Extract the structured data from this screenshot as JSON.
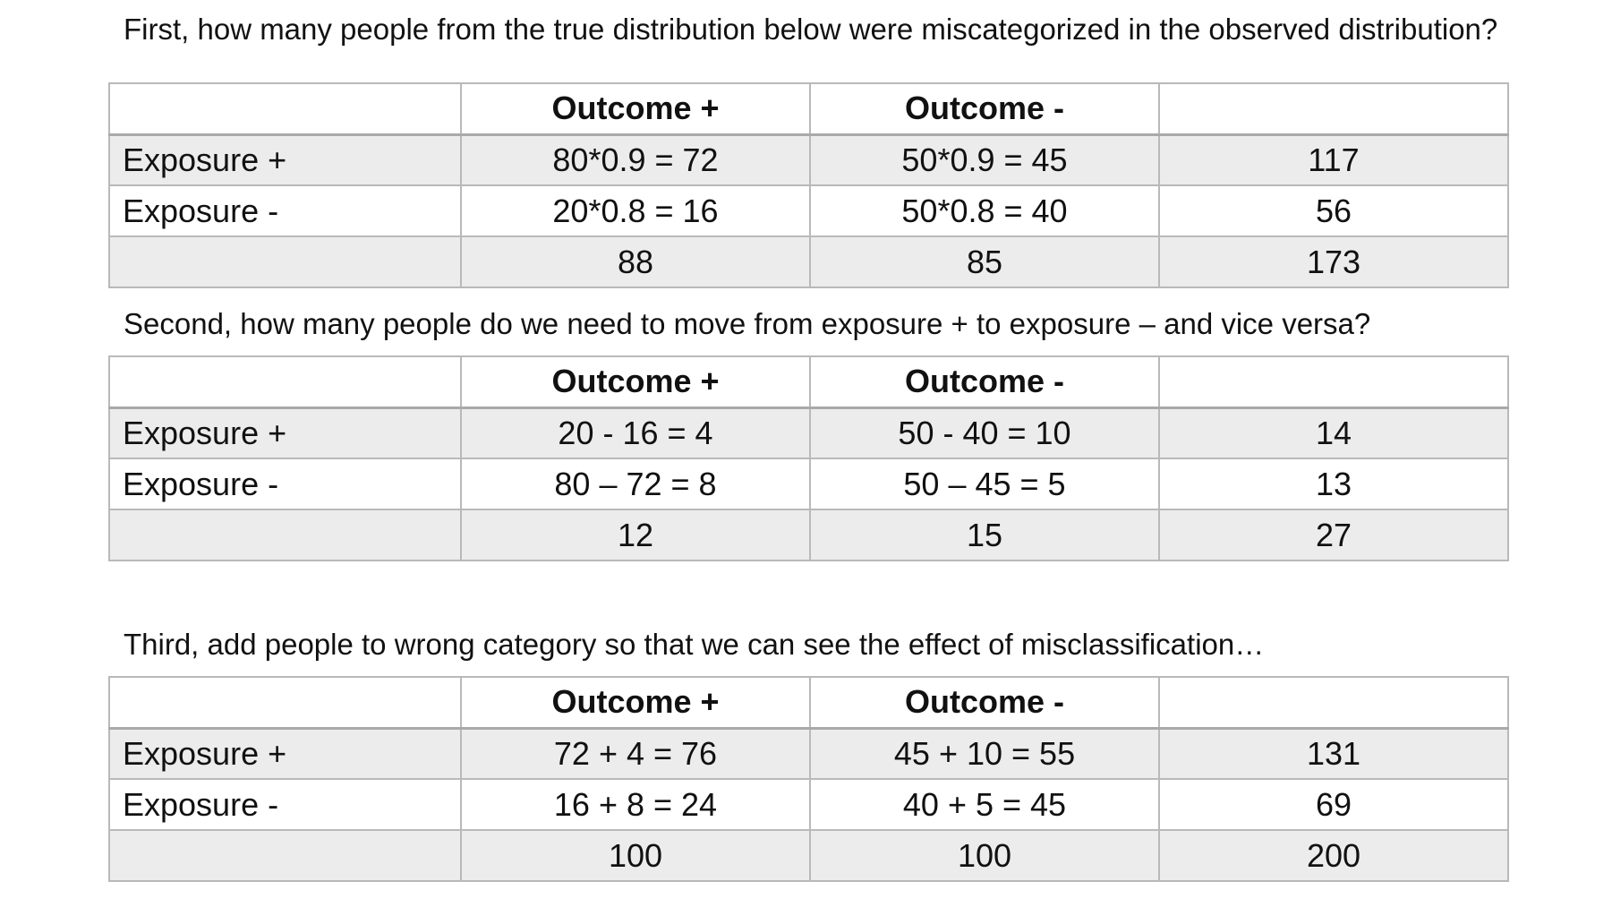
{
  "sections": [
    {
      "question": "First, how many people from the true distribution below were miscategorized in the observed distribution?",
      "header": [
        "",
        "Outcome +",
        "Outcome -",
        ""
      ],
      "rows": [
        [
          "Exposure +",
          "80*0.9 = 72",
          "50*0.9 = 45",
          "117"
        ],
        [
          "Exposure -",
          "20*0.8 = 16",
          "50*0.8 = 40",
          "56"
        ],
        [
          "",
          "88",
          "85",
          "173"
        ]
      ]
    },
    {
      "question": "Second, how many people do we need to move from exposure + to exposure – and vice versa?",
      "header": [
        "",
        "Outcome +",
        "Outcome -",
        ""
      ],
      "rows": [
        [
          "Exposure +",
          "20 - 16 = 4",
          "50 - 40 = 10",
          "14"
        ],
        [
          "Exposure -",
          "80 – 72 = 8",
          "50 – 45 = 5",
          "13"
        ],
        [
          "",
          "12",
          "15",
          "27"
        ]
      ]
    },
    {
      "question": "Third, add people to wrong category so that we can see the effect of misclassification…",
      "header": [
        "",
        "Outcome +",
        "Outcome -",
        ""
      ],
      "rows": [
        [
          "Exposure +",
          "72 + 4 = 76",
          "45 + 10 = 55",
          "131"
        ],
        [
          "Exposure -",
          "16 + 8 = 24",
          "40 + 5 = 45",
          "69"
        ],
        [
          "",
          "100",
          "100",
          "200"
        ]
      ]
    }
  ]
}
